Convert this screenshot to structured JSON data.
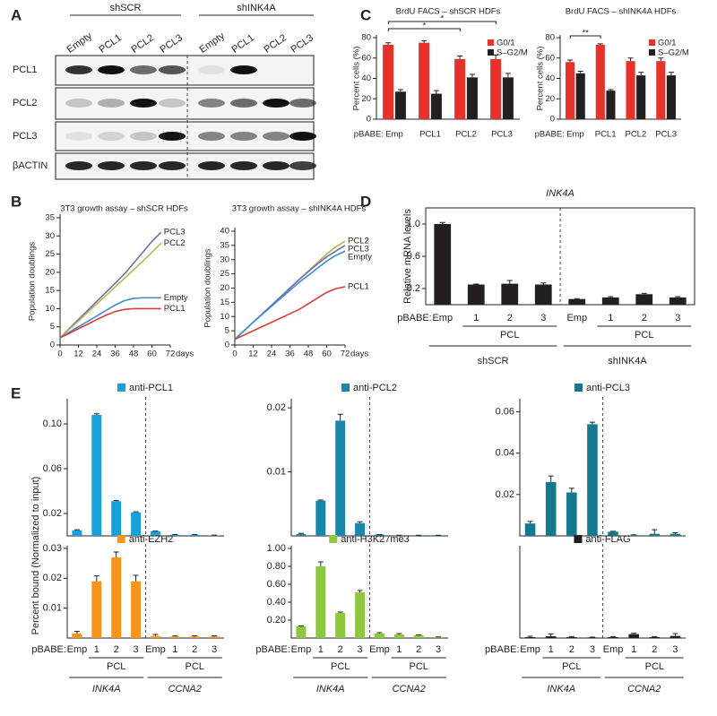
{
  "panels": [
    "A",
    "B",
    "C",
    "D",
    "E"
  ],
  "blot": {
    "groups": [
      "shSCR",
      "shINK4A"
    ],
    "lanes": [
      "Empty",
      "PCL1",
      "PCL2",
      "PCL3",
      "Empty",
      "PCL1",
      "PCL2",
      "PCL3"
    ],
    "rows": [
      "PCL1",
      "PCL2",
      "PCL3",
      "βACTIN"
    ]
  },
  "shared_ylabel": "Percent bound (Normalized to input)",
  "chart_data": [
    {
      "type": "line",
      "title": "3T3 growth assay – shSCR HDFs",
      "ylabel": "Population doublings",
      "x_unit": "days",
      "x": [
        0,
        6,
        12,
        18,
        24,
        30,
        36,
        42,
        48,
        54,
        60,
        66
      ],
      "xlim": [
        0,
        72
      ],
      "xticks": [
        0,
        12,
        24,
        36,
        48,
        60,
        72
      ],
      "ylim": [
        0,
        35
      ],
      "yticks": [
        0,
        5,
        10,
        15,
        20,
        25,
        30,
        35
      ],
      "series": [
        {
          "name": "PCL3",
          "color": "#7b68b0",
          "values": [
            2,
            4.5,
            7,
            9.5,
            12,
            14.5,
            17,
            19.5,
            22.5,
            25.5,
            28.5,
            31
          ]
        },
        {
          "name": "PCL2",
          "color": "#a8c04a",
          "values": [
            2,
            4.3,
            6.6,
            9,
            11.3,
            13.6,
            16,
            18.3,
            20.7,
            23,
            25.5,
            28
          ]
        },
        {
          "name": "Empty",
          "color": "#3a8fd0",
          "values": [
            2,
            3.5,
            5,
            6.5,
            8,
            9.5,
            11,
            12.2,
            12.8,
            13,
            13,
            13
          ]
        },
        {
          "name": "PCL1",
          "color": "#d9403a",
          "values": [
            2,
            3.2,
            4.5,
            5.7,
            7,
            8.2,
            9.2,
            9.8,
            10,
            10,
            10,
            10
          ]
        }
      ]
    },
    {
      "type": "line",
      "title": "3T3 growth assay – shINK4A HDFs",
      "ylabel": "Population doublings",
      "x_unit": "days",
      "x": [
        0,
        6,
        12,
        18,
        24,
        30,
        36,
        42,
        48,
        54,
        60,
        66,
        72
      ],
      "xlim": [
        0,
        72
      ],
      "xticks": [
        0,
        12,
        24,
        36,
        48,
        60,
        72
      ],
      "ylim": [
        0,
        40
      ],
      "yticks": [
        0,
        5,
        10,
        15,
        20,
        25,
        30,
        35,
        40
      ],
      "series": [
        {
          "name": "PCL2",
          "color": "#a8c04a",
          "values": [
            2,
            5,
            8,
            11,
            14,
            17,
            20,
            23,
            26,
            29,
            32,
            34.5,
            36.5
          ]
        },
        {
          "name": "PCL3",
          "color": "#7b68b0",
          "values": [
            2,
            5,
            8,
            11,
            14,
            17,
            20,
            23,
            25.8,
            28.5,
            31,
            33,
            35
          ]
        },
        {
          "name": "Empty",
          "color": "#3a8fd0",
          "values": [
            2,
            5,
            8,
            10.8,
            13.6,
            16.4,
            19.2,
            22,
            24.5,
            27,
            29.5,
            31.5,
            33
          ]
        },
        {
          "name": "PCL1",
          "color": "#d9403a",
          "values": [
            2,
            3.5,
            5,
            6.5,
            8,
            9.5,
            11,
            12.5,
            14.5,
            16.5,
            18.5,
            19.8,
            20.5
          ]
        }
      ]
    },
    {
      "type": "bar",
      "title": "BrdU FACS – shSCR HDFs",
      "ylabel": "Percent cells (%)",
      "x_prefix": "pBABE:",
      "categories": [
        "Emp",
        "PCL1",
        "PCL2",
        "PCL3"
      ],
      "ylim": [
        0,
        80
      ],
      "yticks": [
        0,
        20,
        40,
        60,
        80
      ],
      "legend": "upper right",
      "annotations": [
        "*",
        "*"
      ],
      "series": [
        {
          "name": "G0/1",
          "color": "#e8312a",
          "values": [
            73,
            75,
            59,
            59
          ],
          "errors": [
            2,
            2,
            3,
            4
          ]
        },
        {
          "name": "S–G2/M",
          "color": "#231f20",
          "values": [
            27,
            25,
            41,
            41
          ],
          "errors": [
            2,
            3,
            3,
            4
          ]
        }
      ]
    },
    {
      "type": "bar",
      "title": "BrdU FACS – shINK4A HDFs",
      "ylabel": "Percent cells (%)",
      "x_prefix": "pBABE:",
      "categories": [
        "Emp",
        "PCL1",
        "PCL2",
        "PCL3"
      ],
      "ylim": [
        0,
        80
      ],
      "yticks": [
        0,
        20,
        40,
        60,
        80
      ],
      "legend": "upper right",
      "annotations": [
        "**"
      ],
      "series": [
        {
          "name": "G0/1",
          "color": "#e8312a",
          "values": [
            56,
            73,
            57,
            57
          ],
          "errors": [
            2,
            1,
            3,
            3
          ]
        },
        {
          "name": "S–G2/M",
          "color": "#231f20",
          "values": [
            45,
            28,
            43,
            43
          ],
          "errors": [
            2,
            1,
            3,
            3
          ]
        }
      ]
    },
    {
      "type": "bar",
      "title": "INK4A",
      "ylabel": "Relative mRNA levels",
      "x_prefix": "pBABE:",
      "categories": [
        "Emp",
        "1",
        "2",
        "3",
        "Emp",
        "1",
        "2",
        "3"
      ],
      "subgroup": "PCL",
      "groups": [
        "shSCR",
        "shINK4A"
      ],
      "ylim": [
        0,
        1.2
      ],
      "yticks": [
        0.2,
        0.6,
        {
          "value": 1,
          "label": "1.0"
        }
      ],
      "series": [
        {
          "color": "#231f20",
          "values": [
            1.0,
            0.25,
            0.26,
            0.25,
            0.07,
            0.09,
            0.13,
            0.09
          ],
          "errors": [
            0.02,
            0.005,
            0.04,
            0.02,
            0.005,
            0.01,
            0.01,
            0.01
          ]
        }
      ]
    },
    {
      "type": "bar",
      "title": "anti-PCL1",
      "ylim": [
        0,
        0.12
      ],
      "yticks": [
        0.02,
        0.06,
        {
          "value": 0.1,
          "label": "0.10"
        }
      ],
      "series": [
        {
          "color": "#1aa0d8",
          "values": [
            0.005,
            0.108,
            0.031,
            0.021,
            0.004,
            0.001,
            0.001,
            0.0005
          ],
          "errors": [
            0.0005,
            0.001,
            0.0005,
            0.0005,
            0.0003,
            0.0002,
            0.0002,
            0.0002
          ]
        }
      ]
    },
    {
      "type": "bar",
      "title": "anti-PCL2",
      "ylim": [
        0,
        0.021
      ],
      "yticks": [
        0.01,
        0.02
      ],
      "series": [
        {
          "color": "#1a86a8",
          "values": [
            0.0003,
            0.0055,
            0.018,
            0.002,
            0.0002,
            0.0001,
            0.0001,
            0.0001
          ],
          "errors": [
            0.0001,
            0.0001,
            0.001,
            0.0002,
            0,
            0,
            0,
            0
          ]
        }
      ]
    },
    {
      "type": "bar",
      "title": "anti-PCL3",
      "ylim": [
        0,
        0.065
      ],
      "yticks": [
        0.02,
        0.04,
        0.06
      ],
      "series": [
        {
          "color": "#127a8c",
          "values": [
            0.006,
            0.026,
            0.021,
            0.054,
            0.002,
            0.0003,
            0.001,
            0.001
          ],
          "errors": [
            0.001,
            0.003,
            0.002,
            0.001,
            0.0002,
            0.0002,
            0.002,
            0.0005
          ]
        }
      ]
    },
    {
      "type": "bar",
      "title": "anti-EZH2",
      "x_prefix": "pBABE:",
      "categories": [
        "Emp",
        "1",
        "2",
        "3",
        "Emp",
        "1",
        "2",
        "3"
      ],
      "subgroup": "PCL",
      "groups": [
        "INK4A",
        "CCNA2"
      ],
      "ylim": [
        0,
        0.03
      ],
      "yticks": [
        0.01,
        0.02,
        0.03
      ],
      "series": [
        {
          "color": "#f7941d",
          "values": [
            0.0015,
            0.019,
            0.027,
            0.019,
            0.0007,
            0.0005,
            0.0005,
            0.0005
          ],
          "errors": [
            0.0007,
            0.0018,
            0.0018,
            0.002,
            0.0005,
            0.0002,
            0.0002,
            0.0002
          ]
        }
      ]
    },
    {
      "type": "bar",
      "title": "anti-H3K27me3",
      "x_prefix": "pBABE:",
      "categories": [
        "Emp",
        "1",
        "2",
        "3",
        "Emp",
        "1",
        "2",
        "3"
      ],
      "subgroup": "PCL",
      "groups": [
        "INK4A",
        "CCNA2"
      ],
      "ylim": [
        0,
        1
      ],
      "yticks": [
        {
          "value": 0.2,
          "label": "0.20"
        },
        {
          "value": 0.4,
          "label": "0.40"
        },
        {
          "value": 0.6,
          "label": "0.60"
        },
        {
          "value": 0.8,
          "label": "0.80"
        },
        {
          "value": 1,
          "label": "1.00"
        }
      ],
      "series": [
        {
          "color": "#8dc63f",
          "values": [
            0.13,
            0.8,
            0.28,
            0.51,
            0.05,
            0.04,
            0.03,
            0.01
          ],
          "errors": [
            0.005,
            0.05,
            0.01,
            0.02,
            0.01,
            0.01,
            0.005,
            0.002
          ]
        }
      ]
    },
    {
      "type": "bar",
      "title": "anti-FLAG",
      "x_prefix": "pBABE:",
      "categories": [
        "Emp",
        "1",
        "2",
        "3",
        "Emp",
        "1",
        "2",
        "3"
      ],
      "subgroup": "PCL",
      "groups": [
        "INK4A",
        "CCNA2"
      ],
      "ylim": [
        0,
        0.03
      ],
      "series": [
        {
          "color": "#231f20",
          "values": [
            0.0003,
            0.0006,
            0.0003,
            0.0002,
            0.0003,
            0.0013,
            0.0003,
            0.0007
          ],
          "errors": [
            0.0003,
            0.0008,
            0.0002,
            0.0001,
            0.0002,
            0.0003,
            0.0002,
            0.0008
          ]
        }
      ]
    }
  ]
}
